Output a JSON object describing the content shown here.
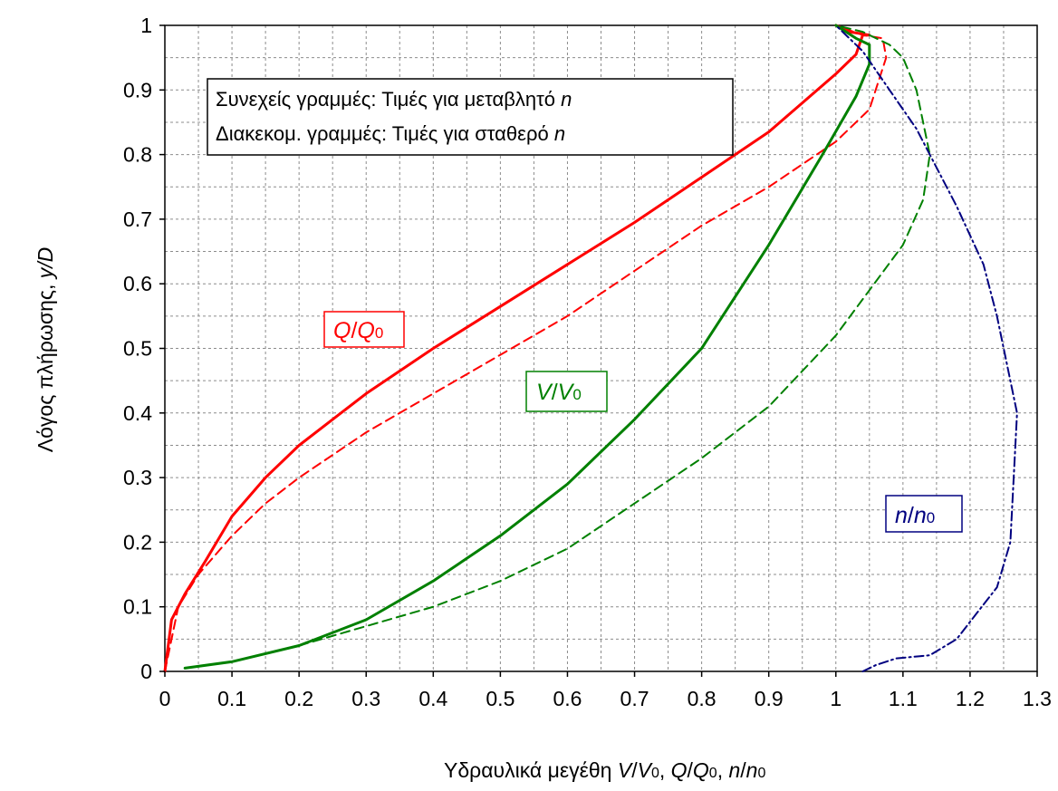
{
  "chart_data": {
    "type": "line",
    "xlabel": {
      "prefix": "Υδραυλικά μεγέθη ",
      "v": "V",
      "v0": "V",
      "sep1": ", ",
      "q": "Q",
      "q0": "Q",
      "sep2": ", ",
      "n": "n",
      "n0": "n",
      "sub": "0",
      "slash": "/"
    },
    "ylabel": {
      "text": "Λόγος πλήρωσης, ",
      "italic": "y/D"
    },
    "xlim": [
      0,
      1.3
    ],
    "ylim": [
      0,
      1
    ],
    "xticks": [
      "0",
      "0.1",
      "0.2",
      "0.3",
      "0.4",
      "0.5",
      "0.6",
      "0.7",
      "0.8",
      "0.9",
      "1",
      "1.1",
      "1.2",
      "1.3"
    ],
    "yticks": [
      "0",
      "0.1",
      "0.2",
      "0.3",
      "0.4",
      "0.5",
      "0.6",
      "0.7",
      "0.8",
      "0.9",
      "1"
    ],
    "grid": true,
    "note": {
      "line1": "Συνεχείς γραμμές: Τιμές για μεταβλητό ",
      "line1_var": "n",
      "line2": "Διακεκομ. γραμμές: Τιμές για σταθερό ",
      "line2_var": "n"
    },
    "labels": {
      "q": {
        "num": "Q",
        "slash": "/",
        "den": "Q",
        "sub": "0",
        "color": "#ff0000"
      },
      "v": {
        "num": "V",
        "slash": "/",
        "den": "V",
        "sub": "0",
        "color": "#008000"
      },
      "n": {
        "num": "n",
        "slash": "/",
        "den": "n",
        "sub": "0",
        "color": "#000080"
      }
    },
    "series": [
      {
        "key": "Q_variable",
        "color": "#ff0000",
        "style": "solid",
        "points": [
          [
            0,
            0
          ],
          [
            0.01,
            0.08
          ],
          [
            0.03,
            0.12
          ],
          [
            0.06,
            0.17
          ],
          [
            0.1,
            0.24
          ],
          [
            0.15,
            0.3
          ],
          [
            0.2,
            0.35
          ],
          [
            0.3,
            0.43
          ],
          [
            0.4,
            0.5
          ],
          [
            0.5,
            0.565
          ],
          [
            0.6,
            0.63
          ],
          [
            0.7,
            0.695
          ],
          [
            0.8,
            0.765
          ],
          [
            0.9,
            0.835
          ],
          [
            0.95,
            0.88
          ],
          [
            1.0,
            0.925
          ],
          [
            1.03,
            0.955
          ],
          [
            1.04,
            0.985
          ],
          [
            1.05,
            0.985
          ],
          [
            1.02,
            0.99
          ],
          [
            1.0,
            1.0
          ]
        ]
      },
      {
        "key": "Q_constant",
        "color": "#ff0000",
        "style": "dashed",
        "points": [
          [
            0,
            0
          ],
          [
            0.02,
            0.1
          ],
          [
            0.05,
            0.15
          ],
          [
            0.1,
            0.21
          ],
          [
            0.15,
            0.26
          ],
          [
            0.2,
            0.3
          ],
          [
            0.3,
            0.37
          ],
          [
            0.4,
            0.43
          ],
          [
            0.5,
            0.49
          ],
          [
            0.6,
            0.55
          ],
          [
            0.7,
            0.62
          ],
          [
            0.8,
            0.69
          ],
          [
            0.9,
            0.75
          ],
          [
            1.0,
            0.82
          ],
          [
            1.05,
            0.87
          ],
          [
            1.075,
            0.95
          ],
          [
            1.07,
            0.98
          ],
          [
            1.04,
            0.985
          ],
          [
            1.0,
            1.0
          ]
        ]
      },
      {
        "key": "V_variable",
        "color": "#008000",
        "style": "solid",
        "points": [
          [
            0.03,
            0.005
          ],
          [
            0.1,
            0.015
          ],
          [
            0.2,
            0.04
          ],
          [
            0.3,
            0.08
          ],
          [
            0.4,
            0.14
          ],
          [
            0.5,
            0.21
          ],
          [
            0.6,
            0.29
          ],
          [
            0.7,
            0.39
          ],
          [
            0.8,
            0.5
          ],
          [
            0.9,
            0.66
          ],
          [
            0.98,
            0.8
          ],
          [
            1.03,
            0.89
          ],
          [
            1.05,
            0.94
          ],
          [
            1.05,
            0.97
          ],
          [
            1.03,
            0.98
          ],
          [
            1.0,
            1.0
          ]
        ]
      },
      {
        "key": "V_constant",
        "color": "#008000",
        "style": "dashed",
        "points": [
          [
            0.2,
            0.04
          ],
          [
            0.3,
            0.07
          ],
          [
            0.4,
            0.1
          ],
          [
            0.5,
            0.14
          ],
          [
            0.6,
            0.19
          ],
          [
            0.7,
            0.26
          ],
          [
            0.8,
            0.33
          ],
          [
            0.9,
            0.41
          ],
          [
            1.0,
            0.52
          ],
          [
            1.05,
            0.59
          ],
          [
            1.1,
            0.66
          ],
          [
            1.13,
            0.73
          ],
          [
            1.14,
            0.8
          ],
          [
            1.12,
            0.9
          ],
          [
            1.1,
            0.95
          ],
          [
            1.08,
            0.97
          ],
          [
            1.04,
            0.99
          ],
          [
            1.0,
            1.0
          ]
        ]
      },
      {
        "key": "n_variable",
        "color": "#000080",
        "style": "dashdot",
        "points": [
          [
            1.04,
            0.0
          ],
          [
            1.06,
            0.01
          ],
          [
            1.09,
            0.02
          ],
          [
            1.14,
            0.025
          ],
          [
            1.18,
            0.05
          ],
          [
            1.21,
            0.09
          ],
          [
            1.24,
            0.13
          ],
          [
            1.26,
            0.2
          ],
          [
            1.265,
            0.3
          ],
          [
            1.27,
            0.4
          ],
          [
            1.26,
            0.45
          ],
          [
            1.24,
            0.55
          ],
          [
            1.22,
            0.63
          ],
          [
            1.18,
            0.72
          ],
          [
            1.15,
            0.78
          ],
          [
            1.12,
            0.84
          ],
          [
            1.08,
            0.9
          ],
          [
            1.04,
            0.96
          ],
          [
            1.0,
            1.0
          ]
        ]
      }
    ]
  }
}
